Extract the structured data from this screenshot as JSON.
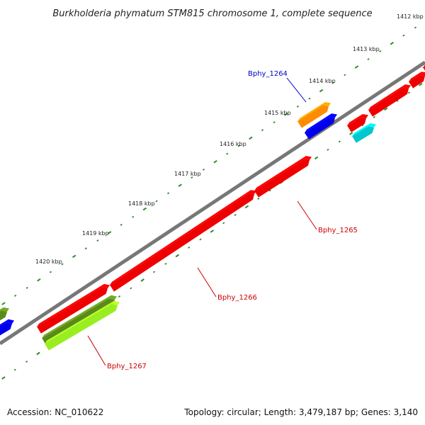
{
  "title": "Burkholderia phymatum STM815 chromosome 1, complete sequence",
  "footer": {
    "accession": "Accession: NC_010622",
    "topology": "Topology: circular; Length: 3,479,187 bp; Genes: 3,140"
  },
  "ticks": [
    "1412 kbp",
    "1413 kbp",
    "1414 kbp",
    "1415 kbp",
    "1416 kbp",
    "1417 kbp",
    "1418 kbp",
    "1419 kbp",
    "1420 kbp"
  ],
  "labeled_genes": [
    {
      "name": "Bphy_1264",
      "color": "#0000cc"
    },
    {
      "name": "Bphy_1265",
      "color": "#cc0000"
    },
    {
      "name": "Bphy_1266",
      "color": "#cc0000"
    },
    {
      "name": "Bphy_1267",
      "color": "#cc0000"
    }
  ],
  "colors": {
    "backbone": "#777777",
    "tick_dots": "#2e8b2e",
    "gene_red": "#ee0000",
    "gene_blue": "#0000ee",
    "gene_orange": "#ff8c00",
    "gene_cyan": "#00c8cc",
    "gene_olive": "#5a8a1a",
    "gene_lime": "#99ee22"
  }
}
